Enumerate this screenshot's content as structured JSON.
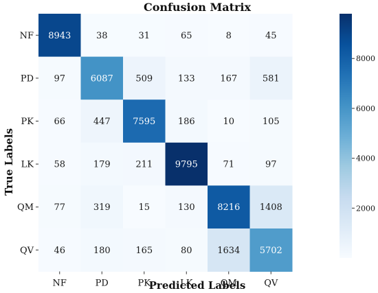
{
  "chart_data": {
    "type": "heatmap",
    "title": "Confusion Matrix",
    "xlabel": "Predicted Labels",
    "ylabel": "True Labels",
    "x_categories": [
      "NF",
      "PD",
      "PK",
      "LK",
      "QM",
      "QV"
    ],
    "y_categories": [
      "NF",
      "PD",
      "PK",
      "LK",
      "QM",
      "QV"
    ],
    "matrix": [
      [
        8943,
        38,
        31,
        65,
        8,
        45
      ],
      [
        97,
        6087,
        509,
        133,
        167,
        581
      ],
      [
        66,
        447,
        7595,
        186,
        10,
        105
      ],
      [
        58,
        179,
        211,
        9795,
        71,
        97
      ],
      [
        77,
        319,
        15,
        130,
        8216,
        1408
      ],
      [
        46,
        180,
        165,
        80,
        1634,
        5702
      ]
    ],
    "colorbar": {
      "min": 0,
      "max": 9795,
      "ticks": [
        2000,
        4000,
        6000,
        8000
      ],
      "colormap": "Blues"
    },
    "colors": {
      "low": "#f7fbff",
      "high": "#08306b",
      "text_dark": "#1a1a1a",
      "text_light": "#ffffff"
    }
  }
}
